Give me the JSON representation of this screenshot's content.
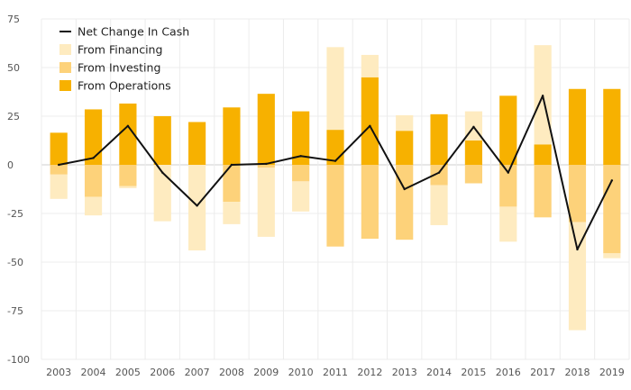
{
  "chart_data": {
    "type": "bar",
    "categories": [
      "2003",
      "2004",
      "2005",
      "2006",
      "2007",
      "2008",
      "2009",
      "2010",
      "2011",
      "2012",
      "2013",
      "2014",
      "2015",
      "2016",
      "2017",
      "2018",
      "2019"
    ],
    "series": [
      {
        "name": "From Operations",
        "kind": "bar",
        "color": "#f7b100",
        "values": [
          16.5,
          28.5,
          31.5,
          25,
          22,
          29.5,
          36.5,
          27.5,
          18,
          45,
          17.5,
          26,
          12.5,
          35.5,
          10.5,
          39,
          39
        ]
      },
      {
        "name": "From Investing",
        "kind": "bar",
        "color": "#fdd27a",
        "values": [
          -5,
          -16.5,
          -11,
          0,
          0,
          -19,
          -1.5,
          -8.5,
          -42,
          -38,
          -38.5,
          -10.5,
          -9.5,
          -21.5,
          -27,
          -29.5,
          -45.5
        ]
      },
      {
        "name": "From Financing",
        "kind": "bar",
        "color": "#feebc0",
        "values": [
          -12.5,
          -9.5,
          -1,
          -29,
          -44,
          -11.5,
          -35.5,
          -15.5,
          42.5,
          11.5,
          8,
          -20.5,
          15,
          -18,
          51,
          -55.5,
          -2.5
        ]
      },
      {
        "name": "Net Change In Cash",
        "kind": "line",
        "color": "#111111",
        "values": [
          0,
          3.5,
          20,
          -4,
          -21,
          0,
          0.5,
          4.5,
          2,
          20,
          -12.5,
          -4,
          19.5,
          -4,
          35.5,
          -43.5,
          -8
        ]
      }
    ],
    "ylim": [
      -100,
      75
    ],
    "yticks": [
      -100,
      -75,
      -50,
      -25,
      0,
      25,
      50,
      75
    ],
    "grid": true,
    "legend_position": "top-left",
    "legend_order": [
      "Net Change In Cash",
      "From Financing",
      "From Investing",
      "From Operations"
    ],
    "title": "",
    "xlabel": "",
    "ylabel": ""
  }
}
